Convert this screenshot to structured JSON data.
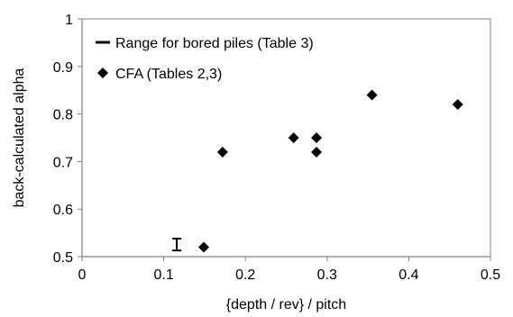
{
  "chart_data": {
    "type": "scatter",
    "xlabel": "{depth / rev}   / pitch",
    "ylabel": "back-calculated alpha",
    "xlim": [
      0,
      0.5
    ],
    "ylim": [
      0.5,
      1
    ],
    "x_ticks": [
      0,
      0.1,
      0.2,
      0.3,
      0.4,
      0.5
    ],
    "y_ticks": [
      0.5,
      0.6,
      0.7,
      0.8,
      0.9,
      1
    ],
    "x_tick_labels": [
      "0",
      "0.1",
      "0.2",
      "0.3",
      "0.4",
      "0.5"
    ],
    "y_tick_labels": [
      "0.5",
      "0.6",
      "0.7",
      "0.8",
      "0.9",
      "1"
    ],
    "grid": false,
    "legend_position": "top-left",
    "series": [
      {
        "name": "Range for bored piles (Table 3)",
        "marker": "error-bar",
        "color": "#000000",
        "points": [
          {
            "x": 0.116,
            "y_low": 0.513,
            "y_high": 0.538
          }
        ]
      },
      {
        "name": "CFA (Tables 2,3)",
        "marker": "diamond",
        "color": "#000000",
        "points": [
          {
            "x": 0.149,
            "y": 0.52
          },
          {
            "x": 0.172,
            "y": 0.72
          },
          {
            "x": 0.259,
            "y": 0.75
          },
          {
            "x": 0.287,
            "y": 0.75
          },
          {
            "x": 0.287,
            "y": 0.72
          },
          {
            "x": 0.355,
            "y": 0.84
          },
          {
            "x": 0.46,
            "y": 0.82
          }
        ]
      }
    ]
  }
}
